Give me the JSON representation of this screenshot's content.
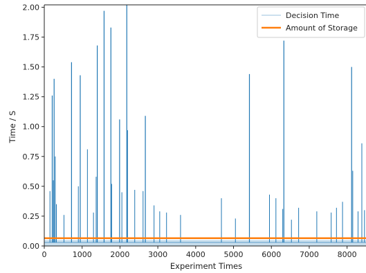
{
  "chart_data": {
    "type": "line",
    "xlabel": "Experiment Times",
    "ylabel": "Time / S",
    "xlim": [
      0,
      8500
    ],
    "ylim": [
      0,
      2.02
    ],
    "x_ticks": [
      0,
      1000,
      2000,
      3000,
      4000,
      5000,
      6000,
      7000,
      8000
    ],
    "y_ticks": [
      "0.00",
      "0.25",
      "0.50",
      "0.75",
      "1.00",
      "1.25",
      "1.50",
      "1.75",
      "2.00"
    ],
    "grid": false,
    "legend_position": "upper right",
    "series": [
      {
        "name": "Decision Time",
        "color": "#1f77b4",
        "baseline": 0.03,
        "spikes": [
          [
            150,
            0.46
          ],
          [
            210,
            1.26
          ],
          [
            240,
            0.55
          ],
          [
            260,
            1.4
          ],
          [
            290,
            0.75
          ],
          [
            320,
            0.35
          ],
          [
            520,
            0.26
          ],
          [
            720,
            1.54
          ],
          [
            900,
            0.5
          ],
          [
            950,
            1.43
          ],
          [
            1140,
            0.81
          ],
          [
            1300,
            0.28
          ],
          [
            1370,
            0.58
          ],
          [
            1400,
            1.68
          ],
          [
            1580,
            1.97
          ],
          [
            1760,
            1.83
          ],
          [
            1780,
            0.52
          ],
          [
            1990,
            1.06
          ],
          [
            2050,
            0.45
          ],
          [
            2180,
            2.02
          ],
          [
            2200,
            0.97
          ],
          [
            2390,
            0.47
          ],
          [
            2610,
            0.46
          ],
          [
            2670,
            1.09
          ],
          [
            2900,
            0.34
          ],
          [
            3050,
            0.29
          ],
          [
            3230,
            0.28
          ],
          [
            3600,
            0.26
          ],
          [
            4680,
            0.4
          ],
          [
            5050,
            0.23
          ],
          [
            5420,
            1.44
          ],
          [
            5950,
            0.43
          ],
          [
            6120,
            0.4
          ],
          [
            6300,
            0.31
          ],
          [
            6330,
            1.72
          ],
          [
            6530,
            0.22
          ],
          [
            6720,
            0.32
          ],
          [
            7200,
            0.29
          ],
          [
            7580,
            0.28
          ],
          [
            7720,
            0.32
          ],
          [
            7880,
            0.37
          ],
          [
            8120,
            1.5
          ],
          [
            8150,
            0.63
          ],
          [
            8290,
            0.29
          ],
          [
            8390,
            0.86
          ],
          [
            8460,
            0.3
          ]
        ]
      },
      {
        "name": "Amount of Storage",
        "color": "#ff7f0e",
        "values": [
          0.065,
          0.065
        ]
      }
    ]
  }
}
